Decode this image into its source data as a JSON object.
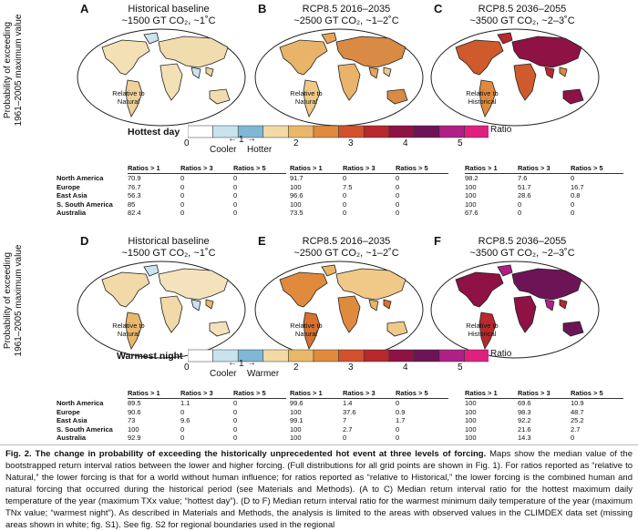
{
  "y_axis_label_line1": "Probability of exceeding",
  "y_axis_label_line2": "1961–2005 maximum value",
  "panels": [
    {
      "letter": "A",
      "title1": "Historical baseline",
      "title2": "~1500 GT CO₂, ~1˚C",
      "inset": [
        "Relative to",
        "Natural"
      ]
    },
    {
      "letter": "B",
      "title1": "RCP8.5 2016–2035",
      "title2": "~2500 GT CO₂, ~1–2˚C",
      "inset": [
        "Relative to",
        "Natural"
      ]
    },
    {
      "letter": "C",
      "title1": "RCP8.5 2036–2055",
      "title2": "~3500 GT CO₂, ~2–3˚C",
      "inset": [
        "Relative to",
        "Historical"
      ]
    },
    {
      "letter": "D",
      "title1": "Historical baseline",
      "title2": "~1500 GT CO₂, ~1˚C",
      "inset": [
        "Relative to",
        "Natural"
      ]
    },
    {
      "letter": "E",
      "title1": "RCP8.5 2016–2035",
      "title2": "~2500 GT CO₂, ~1–2˚C",
      "inset": [
        "Relative to",
        "Natural"
      ]
    },
    {
      "letter": "F",
      "title1": "RCP8.5 2036–2055",
      "title2": "~3500 GT CO₂, ~2–3˚C",
      "inset": [
        "Relative to",
        "Historical"
      ]
    }
  ],
  "colorbar_top": {
    "title": "Hottest day",
    "cooler": "Cooler",
    "hotter": "Hotter",
    "ratio": "Ratio",
    "one": "1"
  },
  "colorbar_bottom": {
    "title": "Warmest night",
    "cooler": "Cooler",
    "hotter": "Warmer",
    "ratio": "Ratio",
    "one": "1"
  },
  "colorbar_ticks": [
    "0",
    "2",
    "3",
    "4",
    "5"
  ],
  "colorbar_colors": [
    "#ffffff",
    "#c8e3ee",
    "#7fb8d4",
    "#f2d9a6",
    "#e9b86a",
    "#e08a3e",
    "#d1522c",
    "#b8282d",
    "#8e1244",
    "#6d1456",
    "#b01f86",
    "#e0207f"
  ],
  "column_headers": [
    "Ratios > 1",
    "Ratios > 3",
    "Ratios > 5"
  ],
  "regions": [
    "North America",
    "Europe",
    "East Asia",
    "S. South America",
    "Australia"
  ],
  "table_top": [
    [
      [
        "70.9",
        "0",
        "0"
      ],
      [
        "76.7",
        "0",
        "0"
      ],
      [
        "56.3",
        "0",
        "0"
      ],
      [
        "85",
        "0",
        "0"
      ],
      [
        "82.4",
        "0",
        "0"
      ]
    ],
    [
      [
        "91.7",
        "0",
        "0"
      ],
      [
        "100",
        "7.5",
        "0"
      ],
      [
        "96.6",
        "0",
        "0"
      ],
      [
        "100",
        "0",
        "0"
      ],
      [
        "73.5",
        "0",
        "0"
      ]
    ],
    [
      [
        "98.2",
        "7.6",
        "0"
      ],
      [
        "100",
        "51.7",
        "16.7"
      ],
      [
        "100",
        "28.6",
        "0.8"
      ],
      [
        "100",
        "0",
        "0"
      ],
      [
        "67.6",
        "0",
        "0"
      ]
    ]
  ],
  "table_bottom": [
    [
      [
        "89.5",
        "1.1",
        "0"
      ],
      [
        "90.6",
        "0",
        "0"
      ],
      [
        "73",
        "9.6",
        "0"
      ],
      [
        "100",
        "0",
        "0"
      ],
      [
        "92.9",
        "0",
        "0"
      ]
    ],
    [
      [
        "99.6",
        "1.4",
        "0"
      ],
      [
        "100",
        "37.6",
        "0.9"
      ],
      [
        "99.1",
        "7",
        "1.7"
      ],
      [
        "100",
        "2.7",
        "0"
      ],
      [
        "100",
        "0",
        "0"
      ]
    ],
    [
      [
        "100",
        "69.6",
        "10.9"
      ],
      [
        "100",
        "98.3",
        "48.7"
      ],
      [
        "100",
        "92.2",
        "25.2"
      ],
      [
        "100",
        "21.6",
        "2.7"
      ],
      [
        "100",
        "14.3",
        "0"
      ]
    ]
  ],
  "caption": {
    "bold": "Fig. 2. The change in probability of exceeding the historically unprecedented hot event at three levels of forcing.",
    "text": " Maps show the median value of the bootstrapped return interval ratios between the lower and higher forcing. (Full distributions for all grid points are shown in Fig. 1). For ratios reported as “relative to Natural,” the lower forcing is that for a world without human influence; for ratios reported as “relative to Historical,” the lower forcing is the combined human and natural forcing that occurred during the historical period (see Materials and Methods). (A to C) Median return interval ratio for the hottest maximum daily temperature of the year (maximum TXx value; “hottest day”). (D to F) Median return interval ratio for the warmest minimum daily temperature of the year (maximum TNx value; “warmest night”). As described in Materials and Methods, the analysis is limited to the areas with observed values in the CLIMDEX data set (missing areas shown in white; fig. S1). See fig. S2 for regional boundaries used in the regional"
  }
}
